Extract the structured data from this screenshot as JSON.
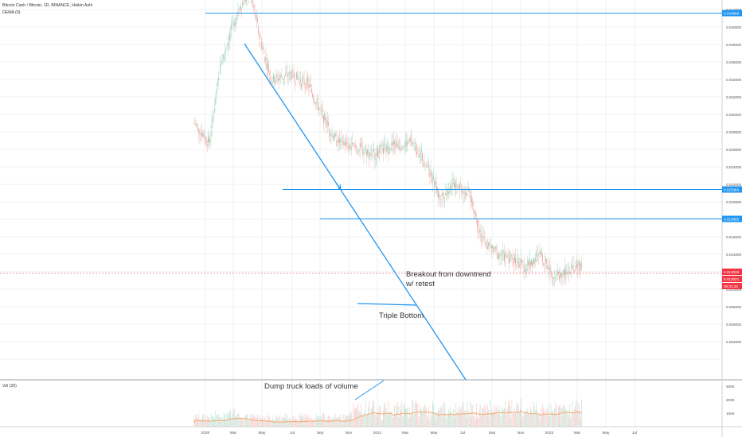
{
  "header": {
    "symbol_line": "Bitcoin Cash / Bitcoin, 1D, BINANCE, Heikin Ashi",
    "indicator": "DEMA (9)",
    "volume_label": "Vol (20)"
  },
  "colors": {
    "up": "#8fd1b6",
    "down": "#f4a09a",
    "line": "#2196f3",
    "vol_ma": "#f4a36b",
    "grid": "#eef0f3",
    "price_red": "#f23645"
  },
  "price_axis": {
    "ticks": [
      "0.042000",
      "0.040000",
      "0.038000",
      "0.036000",
      "0.034000",
      "0.032000",
      "0.030000",
      "0.028000",
      "0.026000",
      "0.024000",
      "0.022000",
      "0.020000",
      "0.018000",
      "0.016000",
      "0.014000",
      "0.012000",
      "0.010000",
      "0.008000",
      "0.006000",
      "0.004000"
    ],
    "tags": [
      {
        "text": "0.043988",
        "color": "#2196f3"
      },
      {
        "text": "0.023384",
        "color": "#2196f3"
      },
      {
        "text": "0.019885",
        "color": "#2196f3"
      },
      {
        "text": "0.013028",
        "color": "#f23645"
      },
      {
        "text": "0.013021",
        "color": "#f23645"
      },
      {
        "text": "08:31:25",
        "color": "#f23645"
      }
    ]
  },
  "volume_axis": {
    "ticks": [
      "300K",
      "200K",
      "100K"
    ]
  },
  "time_axis": {
    "labels": [
      "2020",
      "Mar",
      "May",
      "Jul",
      "Sep",
      "Nov",
      "2021",
      "Mar",
      "May",
      "Jul",
      "Sep",
      "Nov",
      "2022",
      "Mar",
      "May",
      "Jul"
    ]
  },
  "annotations": {
    "breakout_line1": "Breakout from downtrend",
    "breakout_line2": "w/ retest",
    "triple_bottom": "Triple Bottom",
    "volume_note": "Dump truck loads of volume"
  },
  "chart_data": {
    "type": "candlestick",
    "title": "Bitcoin Cash / Bitcoin, 1D, BINANCE, Heikin Ashi",
    "ylim": [
      0.003,
      0.0445
    ],
    "horizontal_levels": [
      0.043988,
      0.023384,
      0.019885
    ],
    "current_price": 0.013028,
    "anchors": [
      {
        "date": "2019-12-20",
        "close": 0.029
      },
      {
        "date": "2020-01-05",
        "close": 0.0268
      },
      {
        "date": "2020-01-18",
        "close": 0.036
      },
      {
        "date": "2020-02-05",
        "close": 0.042
      },
      {
        "date": "2020-02-18",
        "close": 0.044
      },
      {
        "date": "2020-03-01",
        "close": 0.038
      },
      {
        "date": "2020-03-12",
        "close": 0.034
      },
      {
        "date": "2020-04-01",
        "close": 0.0345
      },
      {
        "date": "2020-04-20",
        "close": 0.0335
      },
      {
        "date": "2020-05-05",
        "close": 0.03
      },
      {
        "date": "2020-05-20",
        "close": 0.027
      },
      {
        "date": "2020-06-10",
        "close": 0.0262
      },
      {
        "date": "2020-07-01",
        "close": 0.0255
      },
      {
        "date": "2020-07-20",
        "close": 0.0265
      },
      {
        "date": "2020-08-10",
        "close": 0.0268
      },
      {
        "date": "2020-08-25",
        "close": 0.0245
      },
      {
        "date": "2020-09-08",
        "close": 0.0205
      },
      {
        "date": "2020-09-25",
        "close": 0.0222
      },
      {
        "date": "2020-10-10",
        "close": 0.021
      },
      {
        "date": "2020-10-25",
        "close": 0.0155
      },
      {
        "date": "2020-11-10",
        "close": 0.014
      },
      {
        "date": "2020-11-25",
        "close": 0.0135
      },
      {
        "date": "2020-12-10",
        "close": 0.0125
      },
      {
        "date": "2020-12-25",
        "close": 0.014
      },
      {
        "date": "2021-01-10",
        "close": 0.0115
      },
      {
        "date": "2021-01-25",
        "close": 0.012
      },
      {
        "date": "2021-02-08",
        "close": 0.013
      }
    ]
  }
}
